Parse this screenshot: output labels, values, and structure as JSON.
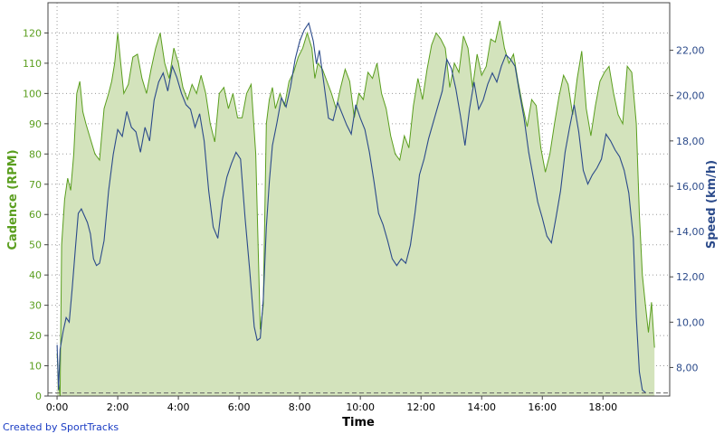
{
  "chart_data": {
    "type": "line",
    "xlabel": "Time",
    "credit": "Created by SportTracks",
    "x_ticks": [
      "0:00",
      "2:00",
      "4:00",
      "6:00",
      "8:00",
      "10:00",
      "12:00",
      "14:00",
      "16:00",
      "18:00"
    ],
    "xlim_minutes": [
      -0.3,
      20.2
    ],
    "grid": true,
    "y_left": {
      "label": "Cadence (RPM)",
      "range": [
        0,
        130
      ],
      "ticks": [
        0,
        10,
        20,
        30,
        40,
        50,
        60,
        70,
        80,
        90,
        100,
        110,
        120
      ],
      "color": "#5a9e1e"
    },
    "y_right": {
      "label": "Speed (km/h)",
      "range": [
        6.74,
        24.1
      ],
      "ticks": [
        "8,00",
        "10,00",
        "12,00",
        "14,00",
        "16,00",
        "18,00",
        "20,00",
        "22,00"
      ],
      "tick_values": [
        8,
        10,
        12,
        14,
        16,
        18,
        20,
        22
      ],
      "color": "#2b4a8a"
    },
    "series": [
      {
        "name": "Cadence",
        "axis": "left",
        "style": "filled-area",
        "color": "#5a9e1e",
        "fill": "#d3e3bc",
        "x": [
          0,
          0.05,
          0.1,
          0.15,
          0.25,
          0.35,
          0.45,
          0.55,
          0.65,
          0.75,
          0.85,
          0.95,
          1.1,
          1.25,
          1.4,
          1.55,
          1.7,
          1.8,
          1.9,
          2.0,
          2.1,
          2.2,
          2.35,
          2.5,
          2.65,
          2.8,
          2.95,
          3.1,
          3.25,
          3.4,
          3.55,
          3.7,
          3.85,
          4.0,
          4.15,
          4.3,
          4.45,
          4.6,
          4.75,
          4.9,
          5.05,
          5.2,
          5.35,
          5.5,
          5.65,
          5.8,
          5.95,
          6.1,
          6.25,
          6.4,
          6.55,
          6.7,
          6.8,
          6.9,
          7.0,
          7.1,
          7.2,
          7.35,
          7.5,
          7.65,
          7.8,
          7.95,
          8.1,
          8.25,
          8.4,
          8.5,
          8.6,
          8.75,
          8.9,
          9.05,
          9.2,
          9.35,
          9.5,
          9.65,
          9.8,
          9.95,
          10.1,
          10.25,
          10.4,
          10.55,
          10.7,
          10.85,
          11.0,
          11.15,
          11.3,
          11.45,
          11.6,
          11.75,
          11.9,
          12.05,
          12.2,
          12.35,
          12.5,
          12.65,
          12.8,
          12.95,
          13.1,
          13.25,
          13.4,
          13.55,
          13.7,
          13.85,
          14.0,
          14.15,
          14.3,
          14.45,
          14.6,
          14.75,
          14.9,
          15.05,
          15.2,
          15.35,
          15.5,
          15.65,
          15.8,
          15.95,
          16.1,
          16.25,
          16.4,
          16.55,
          16.7,
          16.85,
          17.0,
          17.15,
          17.3,
          17.45,
          17.6,
          17.75,
          17.9,
          18.05,
          18.2,
          18.35,
          18.5,
          18.65,
          18.8,
          18.95,
          19.1,
          19.2,
          19.3,
          19.4,
          19.5,
          19.6,
          19.7
        ],
        "values": [
          14,
          5,
          0,
          50,
          65,
          72,
          68,
          80,
          100,
          104,
          94,
          90,
          85,
          80,
          78,
          95,
          100,
          104,
          110,
          120,
          110,
          100,
          103,
          112,
          113,
          105,
          100,
          108,
          115,
          120,
          110,
          105,
          115,
          110,
          102,
          98,
          103,
          100,
          106,
          100,
          90,
          84,
          100,
          102,
          95,
          100,
          92,
          92,
          100,
          103,
          80,
          22,
          30,
          90,
          98,
          102,
          95,
          100,
          96,
          104,
          107,
          112,
          115,
          120,
          115,
          105,
          110,
          108,
          104,
          100,
          95,
          102,
          108,
          104,
          92,
          100,
          98,
          107,
          105,
          110,
          100,
          95,
          86,
          80,
          78,
          86,
          82,
          96,
          105,
          98,
          108,
          116,
          120,
          118,
          115,
          102,
          110,
          107,
          119,
          115,
          102,
          113,
          106,
          109,
          118,
          117,
          124,
          115,
          110,
          113,
          104,
          96,
          89,
          98,
          96,
          82,
          74,
          80,
          90,
          99,
          106,
          103,
          93,
          105,
          114,
          95,
          86,
          96,
          104,
          107,
          109,
          100,
          93,
          90,
          109,
          107,
          90,
          60,
          40,
          30,
          21,
          31,
          16
        ]
      },
      {
        "name": "Speed",
        "axis": "right",
        "style": "line",
        "color": "#2b4a8a",
        "x": [
          0,
          0.05,
          0.1,
          0.2,
          0.3,
          0.4,
          0.5,
          0.6,
          0.7,
          0.8,
          0.9,
          1.0,
          1.1,
          1.2,
          1.3,
          1.4,
          1.55,
          1.7,
          1.85,
          2.0,
          2.15,
          2.3,
          2.45,
          2.6,
          2.75,
          2.9,
          3.05,
          3.2,
          3.35,
          3.5,
          3.65,
          3.8,
          3.95,
          4.1,
          4.25,
          4.4,
          4.55,
          4.7,
          4.85,
          5.0,
          5.15,
          5.3,
          5.45,
          5.6,
          5.75,
          5.9,
          6.05,
          6.2,
          6.35,
          6.5,
          6.6,
          6.7,
          6.8,
          6.9,
          7.0,
          7.1,
          7.25,
          7.4,
          7.55,
          7.7,
          7.85,
          8.0,
          8.15,
          8.3,
          8.45,
          8.55,
          8.65,
          8.8,
          8.95,
          9.1,
          9.25,
          9.4,
          9.55,
          9.7,
          9.85,
          10.0,
          10.15,
          10.3,
          10.45,
          10.6,
          10.75,
          10.9,
          11.05,
          11.2,
          11.35,
          11.5,
          11.65,
          11.8,
          11.95,
          12.1,
          12.25,
          12.4,
          12.55,
          12.7,
          12.85,
          13.0,
          13.15,
          13.3,
          13.45,
          13.6,
          13.75,
          13.9,
          14.05,
          14.2,
          14.35,
          14.5,
          14.65,
          14.8,
          14.95,
          15.1,
          15.25,
          15.4,
          15.55,
          15.7,
          15.85,
          16.0,
          16.15,
          16.3,
          16.45,
          16.6,
          16.75,
          16.9,
          17.05,
          17.2,
          17.35,
          17.5,
          17.65,
          17.8,
          17.95,
          18.1,
          18.25,
          18.4,
          18.55,
          18.7,
          18.85,
          19.0,
          19.1,
          19.2,
          19.3,
          19.4
        ],
        "values": [
          9.0,
          7.0,
          8.8,
          9.6,
          10.2,
          10.0,
          11.5,
          13.2,
          14.8,
          15.0,
          14.7,
          14.4,
          13.9,
          12.8,
          12.5,
          12.6,
          13.6,
          15.8,
          17.4,
          18.5,
          18.2,
          19.3,
          18.6,
          18.4,
          17.5,
          18.6,
          18.0,
          19.8,
          20.6,
          21.0,
          20.2,
          21.3,
          20.8,
          20.1,
          19.6,
          19.4,
          18.6,
          19.2,
          18.0,
          15.8,
          14.2,
          13.7,
          15.4,
          16.4,
          17.0,
          17.5,
          17.2,
          14.6,
          12.3,
          9.8,
          9.2,
          9.3,
          11.0,
          14.2,
          16.2,
          17.8,
          18.8,
          19.9,
          19.5,
          20.4,
          21.6,
          22.4,
          22.9,
          23.2,
          22.4,
          21.4,
          22.0,
          20.5,
          19.0,
          18.9,
          19.7,
          19.2,
          18.7,
          18.3,
          19.6,
          19.0,
          18.5,
          17.5,
          16.2,
          14.8,
          14.3,
          13.6,
          12.8,
          12.5,
          12.8,
          12.6,
          13.4,
          14.8,
          16.5,
          17.2,
          18.1,
          18.8,
          19.5,
          20.2,
          21.6,
          21.2,
          20.3,
          19.1,
          17.8,
          19.4,
          20.6,
          19.4,
          19.8,
          20.5,
          21.0,
          20.6,
          21.3,
          21.8,
          21.6,
          21.3,
          20.1,
          19.0,
          17.5,
          16.4,
          15.3,
          14.6,
          13.8,
          13.5,
          14.6,
          15.8,
          17.5,
          18.6,
          19.6,
          18.4,
          16.7,
          16.1,
          16.5,
          16.8,
          17.2,
          18.3,
          18.0,
          17.6,
          17.3,
          16.7,
          15.7,
          13.7,
          10.2,
          7.8,
          7.0,
          6.9
        ]
      }
    ],
    "reference_line": {
      "value_left": 1,
      "style": "dashed"
    }
  }
}
